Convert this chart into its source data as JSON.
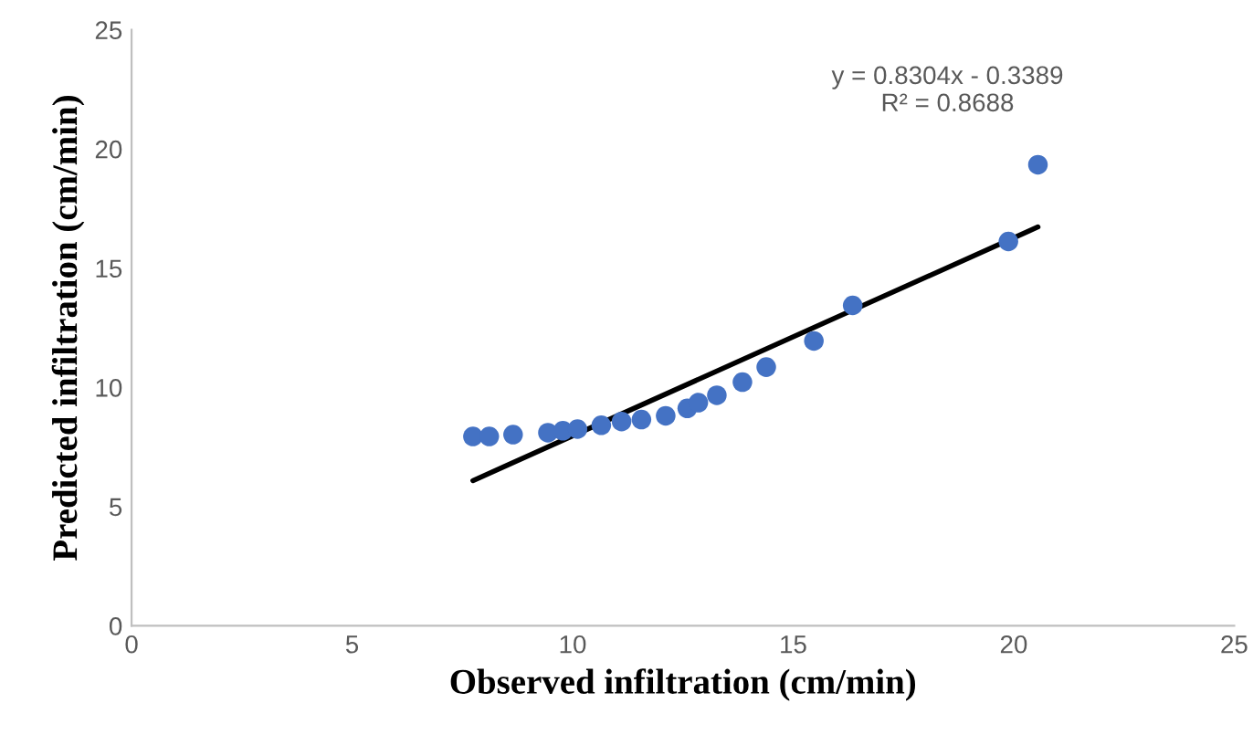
{
  "chart_data": {
    "type": "scatter",
    "xlabel": "Observed infiltration (cm/min)",
    "ylabel": "Predicted infiltration (cm/min)",
    "xlim": [
      0,
      25
    ],
    "xticks": [
      0,
      5,
      10,
      15,
      20,
      25
    ],
    "ylim": [
      0,
      25
    ],
    "yticks": [
      0,
      5,
      10,
      15,
      20,
      25
    ],
    "grid": false,
    "legend": false,
    "series": [
      {
        "color": "#4472c4",
        "marker": "circle",
        "x": [
          7.74,
          8.11,
          8.65,
          9.44,
          9.78,
          10.11,
          10.65,
          11.11,
          11.56,
          12.11,
          12.6,
          12.85,
          13.27,
          13.85,
          14.39,
          15.47,
          16.35,
          19.88,
          20.55
        ],
        "values": [
          7.94,
          7.94,
          8.02,
          8.1,
          8.18,
          8.25,
          8.41,
          8.57,
          8.65,
          8.81,
          9.12,
          9.36,
          9.67,
          10.22,
          10.85,
          11.95,
          13.44,
          16.12,
          19.34
        ]
      },
      {
        "type": "line",
        "color": "#000000",
        "line_style": "solid",
        "x": [
          7.74,
          20.55
        ],
        "values": [
          6.09,
          16.73
        ]
      }
    ],
    "annotations": [
      "y = 0.8304x - 0.3389",
      "R² = 0.8688"
    ]
  }
}
